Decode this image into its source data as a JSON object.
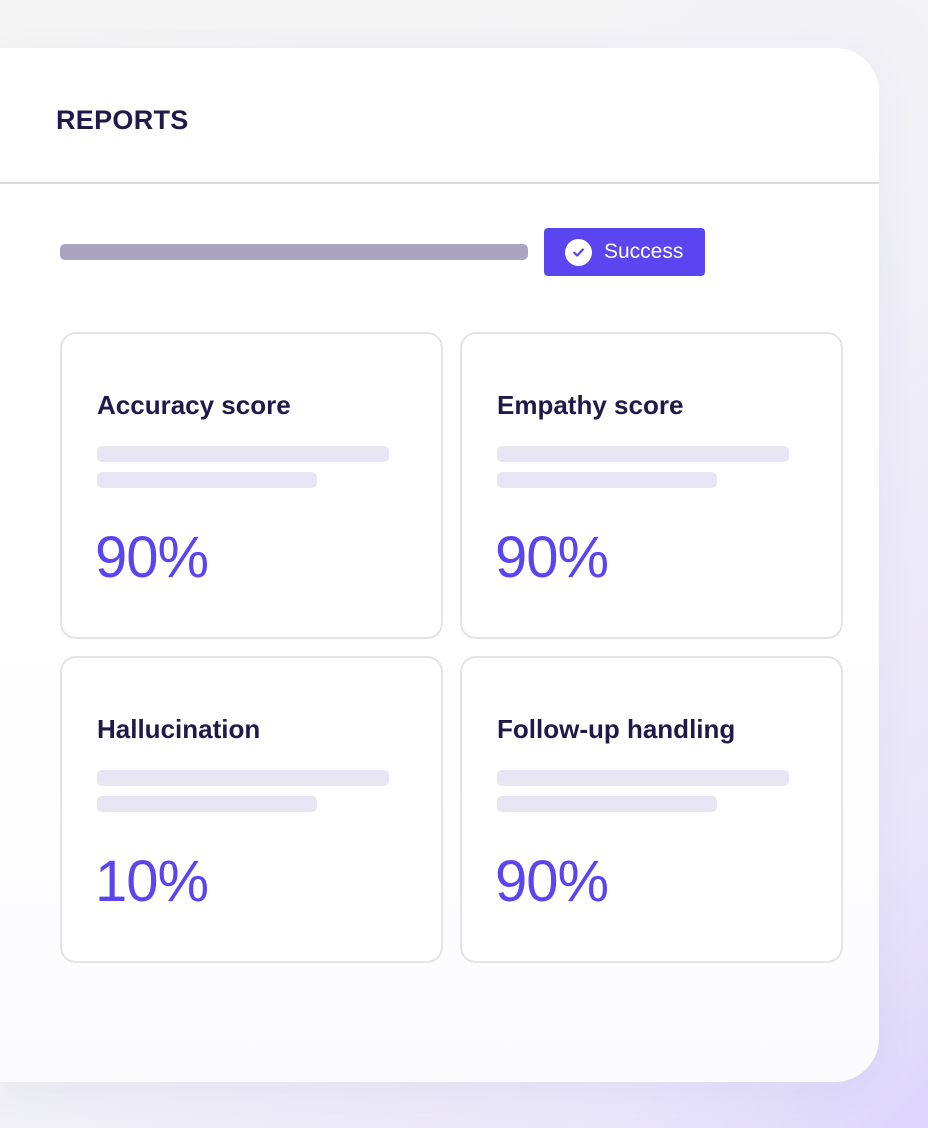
{
  "header": {
    "title": "REPORTS"
  },
  "status": {
    "progress_fraction": 1.0,
    "badge_label": "Success",
    "badge_icon": "check-circle-icon",
    "accent_color": "#5b45f0"
  },
  "metrics": [
    {
      "title": "Accuracy score",
      "value": "90%"
    },
    {
      "title": "Empathy score",
      "value": "90%"
    },
    {
      "title": "Hallucination",
      "value": "10%"
    },
    {
      "title": "Follow-up handling",
      "value": "90%"
    }
  ],
  "colors": {
    "heading": "#1f1a4a",
    "accent": "#5b45f0",
    "progress": "#aaa4c2",
    "skeleton": "#e8e6f4",
    "card_border": "#e4e4e8"
  }
}
